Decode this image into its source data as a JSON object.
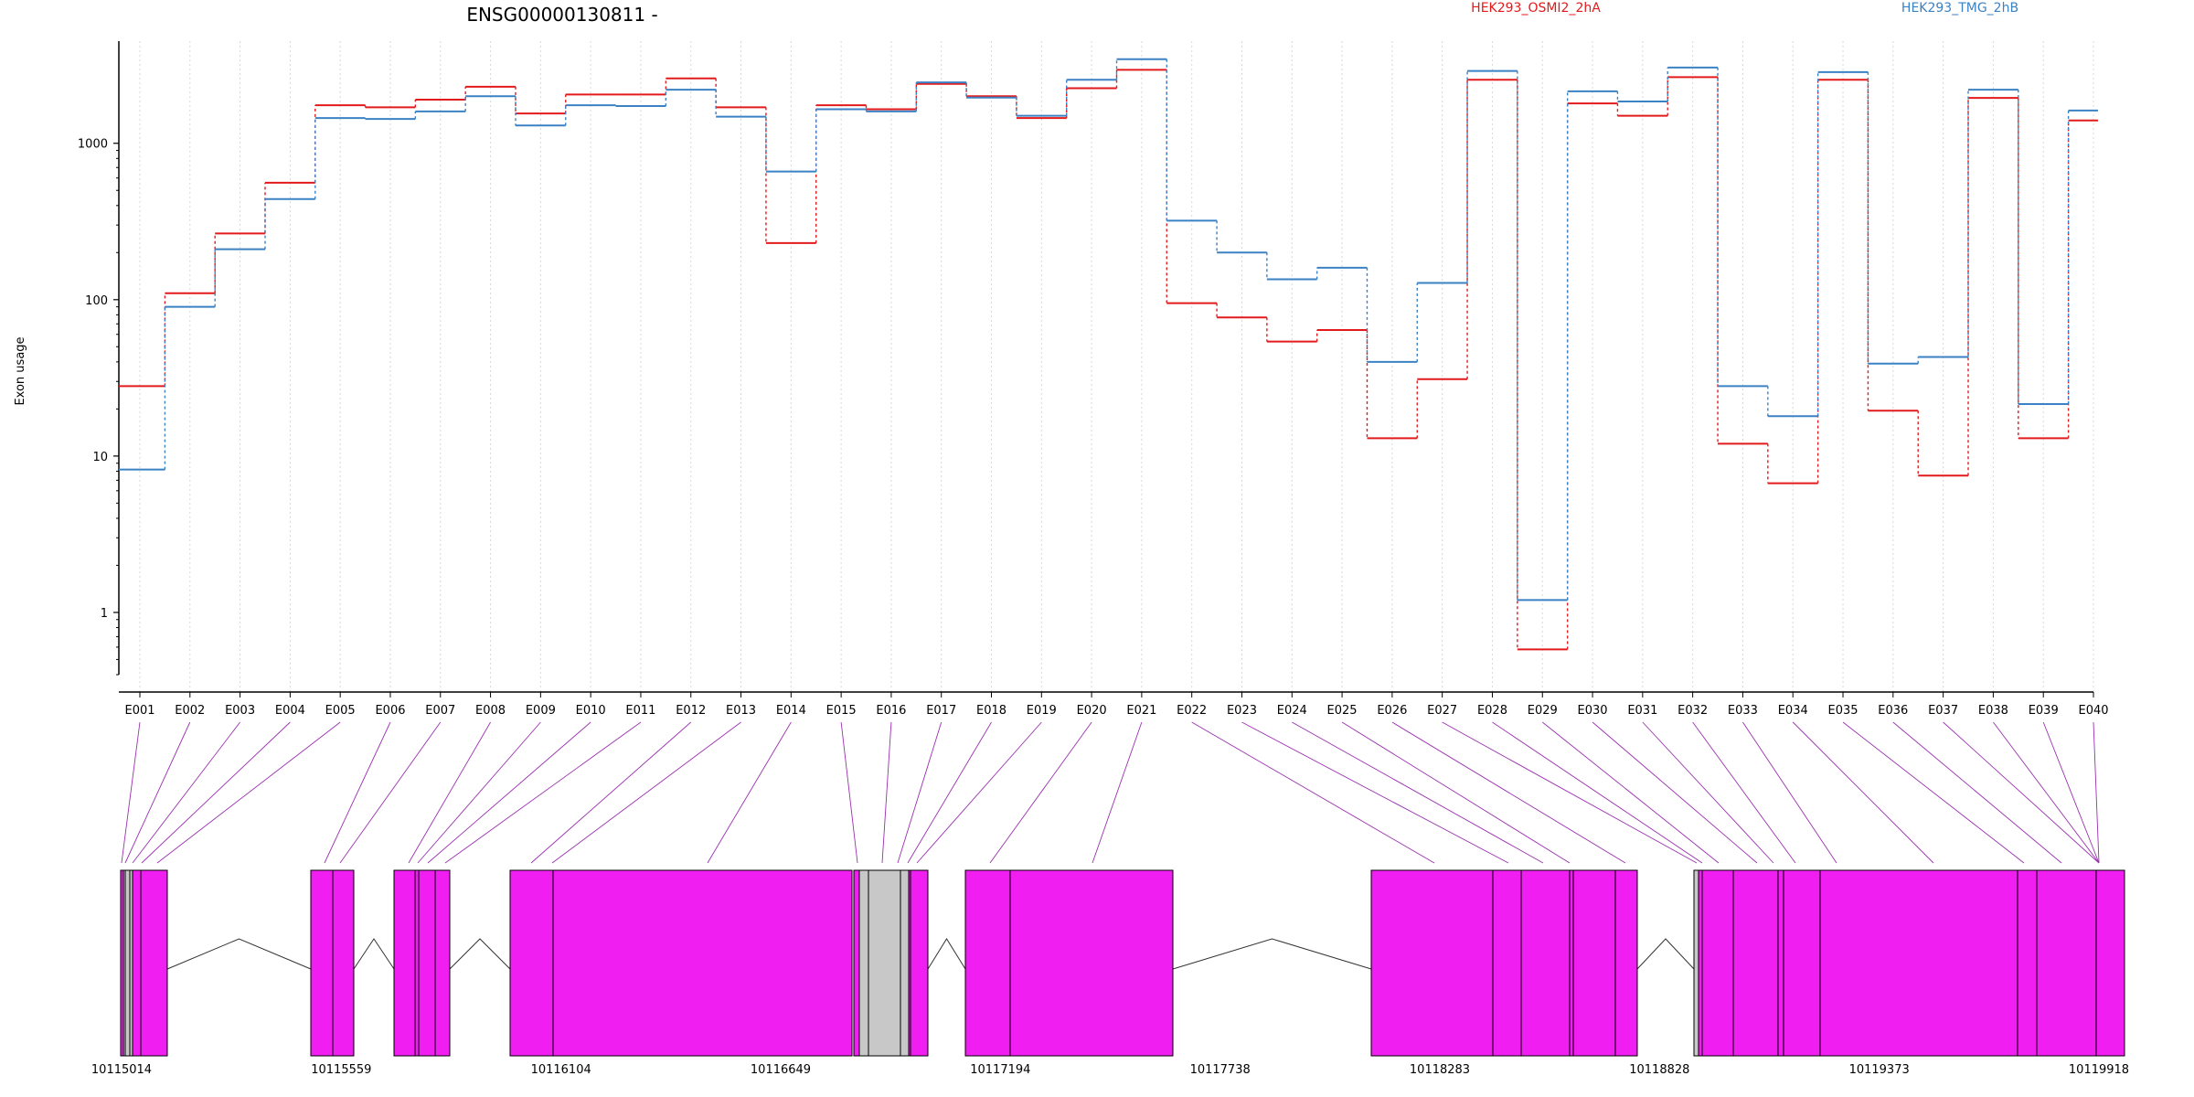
{
  "chart_data": {
    "type": "line",
    "title": "ENSG00000130811 -",
    "ylabel": "Exon usage",
    "xlabel": "",
    "y_scale": "log",
    "ylim": [
      0.4,
      4500
    ],
    "y_ticks": [
      {
        "value": 1,
        "label": "1"
      },
      {
        "value": 10,
        "label": "10"
      },
      {
        "value": 100,
        "label": "100"
      },
      {
        "value": 1000,
        "label": "1000"
      }
    ],
    "grid": "vertical dotted lines at each exon",
    "legend_placement": "top",
    "categories": [
      "E001",
      "E002",
      "E003",
      "E004",
      "E005",
      "E006",
      "E007",
      "E008",
      "E009",
      "E010",
      "E011",
      "E012",
      "E013",
      "E014",
      "E015",
      "E016",
      "E017",
      "E018",
      "E019",
      "E020",
      "E021",
      "E022",
      "E023",
      "E024",
      "E025",
      "E026",
      "E027",
      "E028",
      "E029",
      "E030",
      "E031",
      "E032",
      "E033",
      "E034",
      "E035",
      "E036",
      "E037",
      "E038",
      "E039",
      "E040"
    ],
    "series": [
      {
        "name": "HEK293_OSMI2_2hA",
        "color": "#e31a1c",
        "values": [
          28,
          110,
          265,
          560,
          1750,
          1700,
          1900,
          2300,
          1550,
          2050,
          2050,
          2600,
          1700,
          230,
          1750,
          1650,
          2400,
          2000,
          1450,
          2250,
          2950,
          95,
          77,
          54,
          64,
          13,
          31,
          2550,
          0.58,
          1800,
          1500,
          2650,
          12,
          6.7,
          2550,
          19.5,
          7.5,
          1950,
          13,
          1400
        ]
      },
      {
        "name": "HEK293_TMG_2hB",
        "color": "#3b82c4",
        "values": [
          8.2,
          90,
          210,
          440,
          1450,
          1430,
          1600,
          2000,
          1300,
          1750,
          1730,
          2200,
          1480,
          660,
          1650,
          1600,
          2450,
          1960,
          1500,
          2550,
          3450,
          320,
          200,
          135,
          160,
          40,
          128,
          2900,
          1.2,
          2150,
          1850,
          3050,
          28,
          18,
          2850,
          39,
          43,
          2200,
          21.5,
          1620
        ]
      }
    ],
    "gene_model": {
      "coordinate_labels": [
        "10115014",
        "10115559",
        "10116104",
        "10116649",
        "10117194",
        "10117738",
        "10118283",
        "10118828",
        "10119373",
        "10119918"
      ],
      "exon_color": "#f01ef0",
      "other_color": "#c8c8c8",
      "connector_color": "#9b30b0"
    }
  }
}
